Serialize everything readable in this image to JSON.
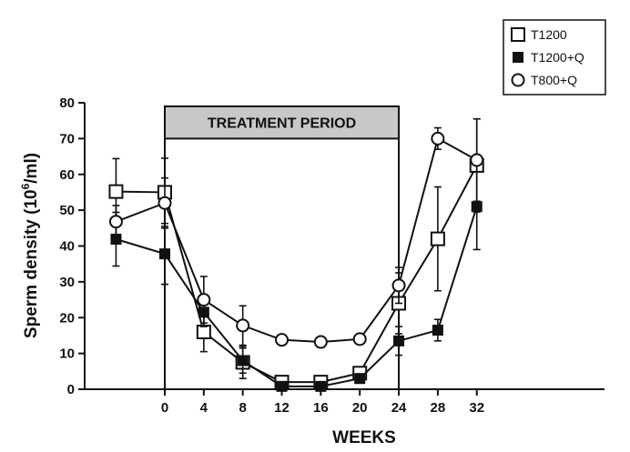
{
  "chart_data": {
    "type": "line",
    "title": "",
    "xlabel": "WEEKS",
    "ylabel_main": "Sperm density (10",
    "ylabel_sup": "6",
    "ylabel_tail": "/ml)",
    "xlim": [
      -6,
      32
    ],
    "ylim": [
      0,
      80
    ],
    "xticks": [
      0,
      4,
      8,
      12,
      16,
      20,
      24,
      28,
      32
    ],
    "yticks": [
      0,
      10,
      20,
      30,
      40,
      50,
      60,
      70,
      80
    ],
    "treatment_band": {
      "label": "TREATMENT PERIOD",
      "start": 0,
      "end": 24,
      "y_low": 70,
      "y_high": 79
    },
    "legend_position": "top-right",
    "series": [
      {
        "name": "T1200",
        "marker": "open-square",
        "points": [
          {
            "x": -5,
            "y": 55.2,
            "err": 9.2
          },
          {
            "x": 0,
            "y": 55.0,
            "err": 9.5
          },
          {
            "x": 4,
            "y": 16.0,
            "err": 5.5
          },
          {
            "x": 8,
            "y": 7.5,
            "err": 4.5
          },
          {
            "x": 12,
            "y": 2.0,
            "err": 1.0
          },
          {
            "x": 16,
            "y": 2.0,
            "err": 1.0
          },
          {
            "x": 20,
            "y": 4.5,
            "err": 1.5
          },
          {
            "x": 24,
            "y": 24.0,
            "err": 8.5
          },
          {
            "x": 28,
            "y": 42.0,
            "err": 14.5
          },
          {
            "x": 32,
            "y": 62.5,
            "err": 13.0
          }
        ]
      },
      {
        "name": "T1200+Q",
        "marker": "filled-square",
        "points": [
          {
            "x": -5,
            "y": 41.9,
            "err": 7.5
          },
          {
            "x": 0,
            "y": 37.8,
            "err": 8.5
          },
          {
            "x": 4,
            "y": 21.5,
            "err": 4.0
          },
          {
            "x": 8,
            "y": 8.0,
            "err": 3.5
          },
          {
            "x": 12,
            "y": 0.8,
            "err": 0.6
          },
          {
            "x": 16,
            "y": 0.8,
            "err": 0.6
          },
          {
            "x": 20,
            "y": 3.0,
            "err": 1.0
          },
          {
            "x": 24,
            "y": 13.5,
            "err": 4.0
          },
          {
            "x": 28,
            "y": 16.5,
            "err": 3.0
          },
          {
            "x": 32,
            "y": 51.0,
            "err": 12.0
          }
        ]
      },
      {
        "name": "T800+Q",
        "marker": "open-circle",
        "points": [
          {
            "x": -5,
            "y": 46.8,
            "err": 4.5
          },
          {
            "x": 0,
            "y": 52.0,
            "err": 7.0
          },
          {
            "x": 4,
            "y": 25.0,
            "err": 6.5
          },
          {
            "x": 8,
            "y": 17.8,
            "err": 5.5
          },
          {
            "x": 12,
            "y": 13.8,
            "err": 1.0
          },
          {
            "x": 16,
            "y": 13.2,
            "err": 1.0
          },
          {
            "x": 20,
            "y": 14.0,
            "err": 1.0
          },
          {
            "x": 24,
            "y": 29.0,
            "err": 5.0
          },
          {
            "x": 28,
            "y": 70.0,
            "err": 3.0
          },
          {
            "x": 32,
            "y": 64.0,
            "err": 11.5
          }
        ]
      }
    ]
  }
}
